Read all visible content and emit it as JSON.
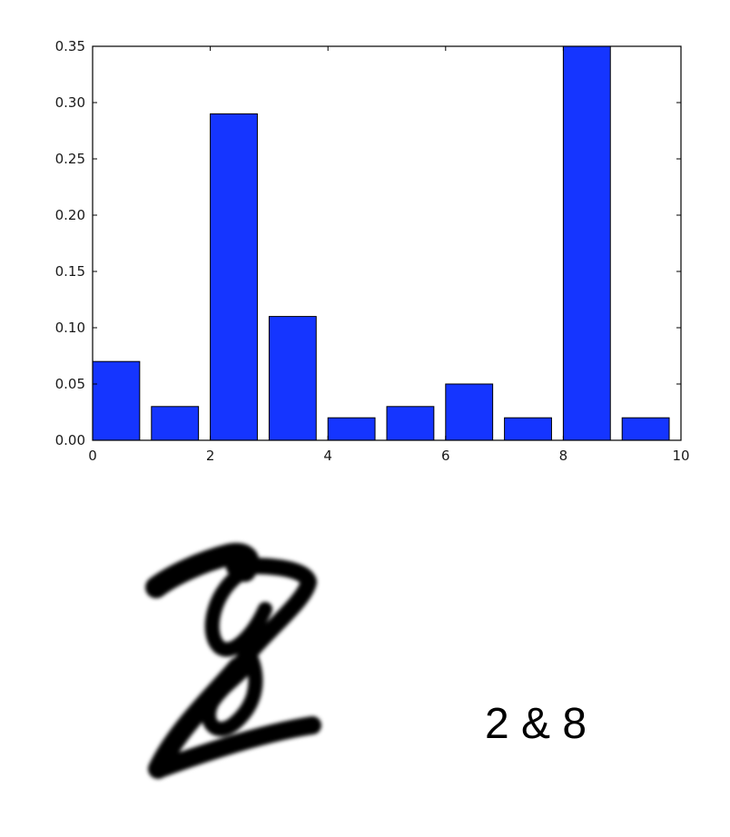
{
  "chart_data": {
    "type": "bar",
    "title": "",
    "xlabel": "",
    "ylabel": "",
    "categories": [
      0,
      1,
      2,
      3,
      4,
      5,
      6,
      7,
      8,
      9
    ],
    "values": [
      0.07,
      0.03,
      0.29,
      0.11,
      0.02,
      0.03,
      0.05,
      0.02,
      0.35,
      0.02
    ],
    "bar_width": 0.8,
    "xlim": [
      0,
      10
    ],
    "ylim": [
      0,
      0.35
    ],
    "xticks": [
      0,
      2,
      4,
      6,
      8,
      10
    ],
    "xtick_labels": [
      "0",
      "2",
      "4",
      "6",
      "8",
      "10"
    ],
    "yticks": [
      0.0,
      0.05,
      0.1,
      0.15,
      0.2,
      0.25,
      0.3,
      0.35
    ],
    "ytick_labels": [
      "0.00",
      "0.05",
      "0.10",
      "0.15",
      "0.20",
      "0.25",
      "0.30",
      "0.35"
    ],
    "grid": false,
    "legend": "none",
    "bar_color": "#1535ff"
  },
  "digit_image": {
    "icon": "handwritten-digit-image"
  },
  "caption": "2 & 8"
}
